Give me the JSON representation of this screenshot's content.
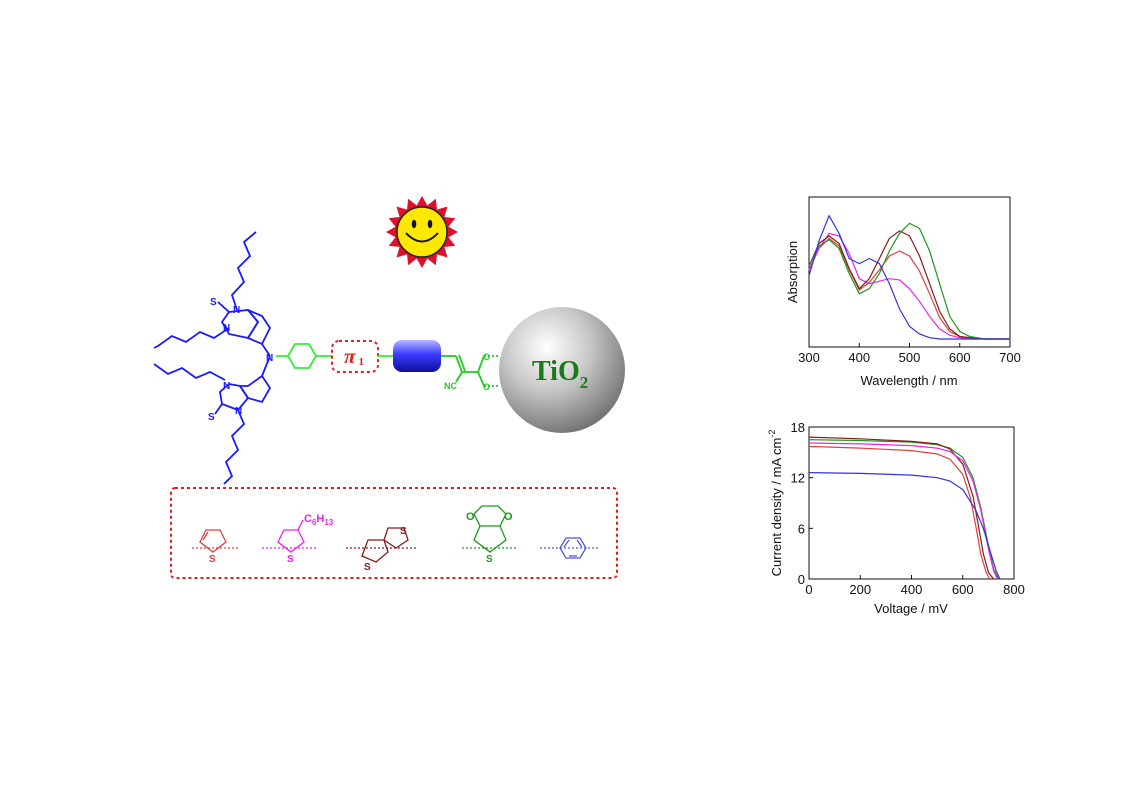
{
  "diagram": {
    "pi_label": "π",
    "pi_subscript": "1",
    "tio2_main": "TiO",
    "tio2_sub": "2",
    "heteroatoms": {
      "sulfur": "S",
      "nitrogen": "N",
      "oxygen": "O",
      "cyano": "NC"
    },
    "alkyl_group": {
      "carbon": "C",
      "c_count": "6",
      "hydrogen": "H",
      "h_count": "13"
    },
    "colors": {
      "donor_blue": "#1a1aff",
      "linker_green": "#33ee33",
      "pi_red": "#e02020",
      "acceptor_block": "#3333dd",
      "anchor_green": "#22cc22",
      "tio2_text": "#1a7a1a",
      "sun_rays": "#e0102a",
      "sun_face": "#ffe800",
      "thiophene": "#e04040",
      "hexylthiophene": "#ee22ee",
      "thienothiophene": "#8b1a1a",
      "edot": "#1a9a1a",
      "benzene": "#5555dd"
    }
  },
  "chart_data": [
    {
      "type": "line",
      "title": "",
      "xlabel": "Wavelength / nm",
      "ylabel": "Absorption",
      "xlim": [
        300,
        700
      ],
      "xticks": [
        "300",
        "400",
        "500",
        "600",
        "700"
      ],
      "yticks_shown": false,
      "series": [
        {
          "color": "#e04040",
          "x": [
            300,
            320,
            340,
            360,
            380,
            400,
            420,
            440,
            460,
            480,
            500,
            520,
            540,
            560,
            580,
            600,
            620,
            650,
            700
          ],
          "y": [
            0.55,
            0.72,
            0.8,
            0.74,
            0.55,
            0.39,
            0.45,
            0.55,
            0.66,
            0.7,
            0.66,
            0.54,
            0.36,
            0.17,
            0.06,
            0.02,
            0.01,
            0.0,
            0.0
          ]
        },
        {
          "color": "#ee22ee",
          "x": [
            300,
            320,
            340,
            360,
            380,
            400,
            420,
            440,
            460,
            480,
            500,
            520,
            540,
            560,
            580,
            600,
            620,
            650,
            700
          ],
          "y": [
            0.55,
            0.72,
            0.84,
            0.82,
            0.68,
            0.48,
            0.44,
            0.46,
            0.48,
            0.47,
            0.4,
            0.3,
            0.18,
            0.08,
            0.03,
            0.01,
            0.0,
            0.0,
            0.0
          ]
        },
        {
          "color": "#8b1a1a",
          "x": [
            300,
            320,
            340,
            360,
            380,
            400,
            420,
            440,
            460,
            480,
            500,
            520,
            540,
            560,
            580,
            600,
            620,
            650,
            700
          ],
          "y": [
            0.58,
            0.76,
            0.82,
            0.76,
            0.56,
            0.4,
            0.48,
            0.64,
            0.8,
            0.86,
            0.82,
            0.66,
            0.44,
            0.22,
            0.08,
            0.02,
            0.01,
            0.0,
            0.0
          ]
        },
        {
          "color": "#1a9a1a",
          "x": [
            300,
            320,
            340,
            360,
            380,
            400,
            420,
            440,
            460,
            480,
            500,
            520,
            540,
            560,
            580,
            600,
            620,
            650,
            700
          ],
          "y": [
            0.58,
            0.74,
            0.79,
            0.72,
            0.52,
            0.36,
            0.4,
            0.52,
            0.7,
            0.84,
            0.92,
            0.88,
            0.7,
            0.44,
            0.18,
            0.06,
            0.02,
            0.0,
            0.0
          ]
        },
        {
          "color": "#3333dd",
          "x": [
            300,
            320,
            340,
            360,
            380,
            400,
            420,
            440,
            460,
            480,
            500,
            520,
            540,
            560,
            580,
            600,
            620,
            650,
            700
          ],
          "y": [
            0.5,
            0.78,
            0.98,
            0.84,
            0.64,
            0.6,
            0.64,
            0.6,
            0.44,
            0.24,
            0.1,
            0.04,
            0.01,
            0.0,
            0.0,
            0.0,
            0.0,
            0.0,
            0.0
          ]
        }
      ]
    },
    {
      "type": "line",
      "title": "",
      "xlabel": "Voltage / mV",
      "ylabel": "Current density / mA cm",
      "ylabel_superscript": "-2",
      "xlim": [
        0,
        800
      ],
      "ylim": [
        0,
        18
      ],
      "xticks": [
        "0",
        "200",
        "400",
        "600",
        "800"
      ],
      "yticks": [
        "0",
        "6",
        "12",
        "18"
      ],
      "series": [
        {
          "color": "#1a9a1a",
          "x": [
            0,
            200,
            400,
            500,
            550,
            600,
            640,
            670,
            700,
            720,
            740
          ],
          "y": [
            16.5,
            16.4,
            16.2,
            15.9,
            15.5,
            14.4,
            12.0,
            8.5,
            4.0,
            1.2,
            0
          ]
        },
        {
          "color": "#8b1a1a",
          "x": [
            0,
            200,
            400,
            500,
            550,
            600,
            640,
            660,
            680,
            700,
            720
          ],
          "y": [
            16.8,
            16.6,
            16.3,
            16.0,
            15.4,
            13.6,
            9.8,
            6.5,
            3.0,
            0.8,
            0
          ]
        },
        {
          "color": "#e04040",
          "x": [
            0,
            200,
            400,
            500,
            550,
            600,
            630,
            650,
            670,
            690,
            705
          ],
          "y": [
            15.7,
            15.5,
            15.2,
            14.8,
            14.2,
            12.4,
            9.6,
            6.4,
            3.0,
            0.9,
            0
          ]
        },
        {
          "color": "#ee22ee",
          "x": [
            0,
            200,
            400,
            500,
            550,
            600,
            640,
            670,
            700,
            720,
            735
          ],
          "y": [
            16.1,
            16.0,
            15.8,
            15.5,
            15.1,
            14.0,
            11.6,
            8.2,
            3.6,
            1.0,
            0
          ]
        },
        {
          "color": "#3333dd",
          "x": [
            0,
            200,
            400,
            500,
            550,
            600,
            650,
            680,
            710,
            730,
            745
          ],
          "y": [
            12.6,
            12.5,
            12.3,
            12.0,
            11.6,
            10.6,
            8.2,
            6.0,
            3.0,
            1.0,
            0
          ]
        }
      ]
    }
  ]
}
